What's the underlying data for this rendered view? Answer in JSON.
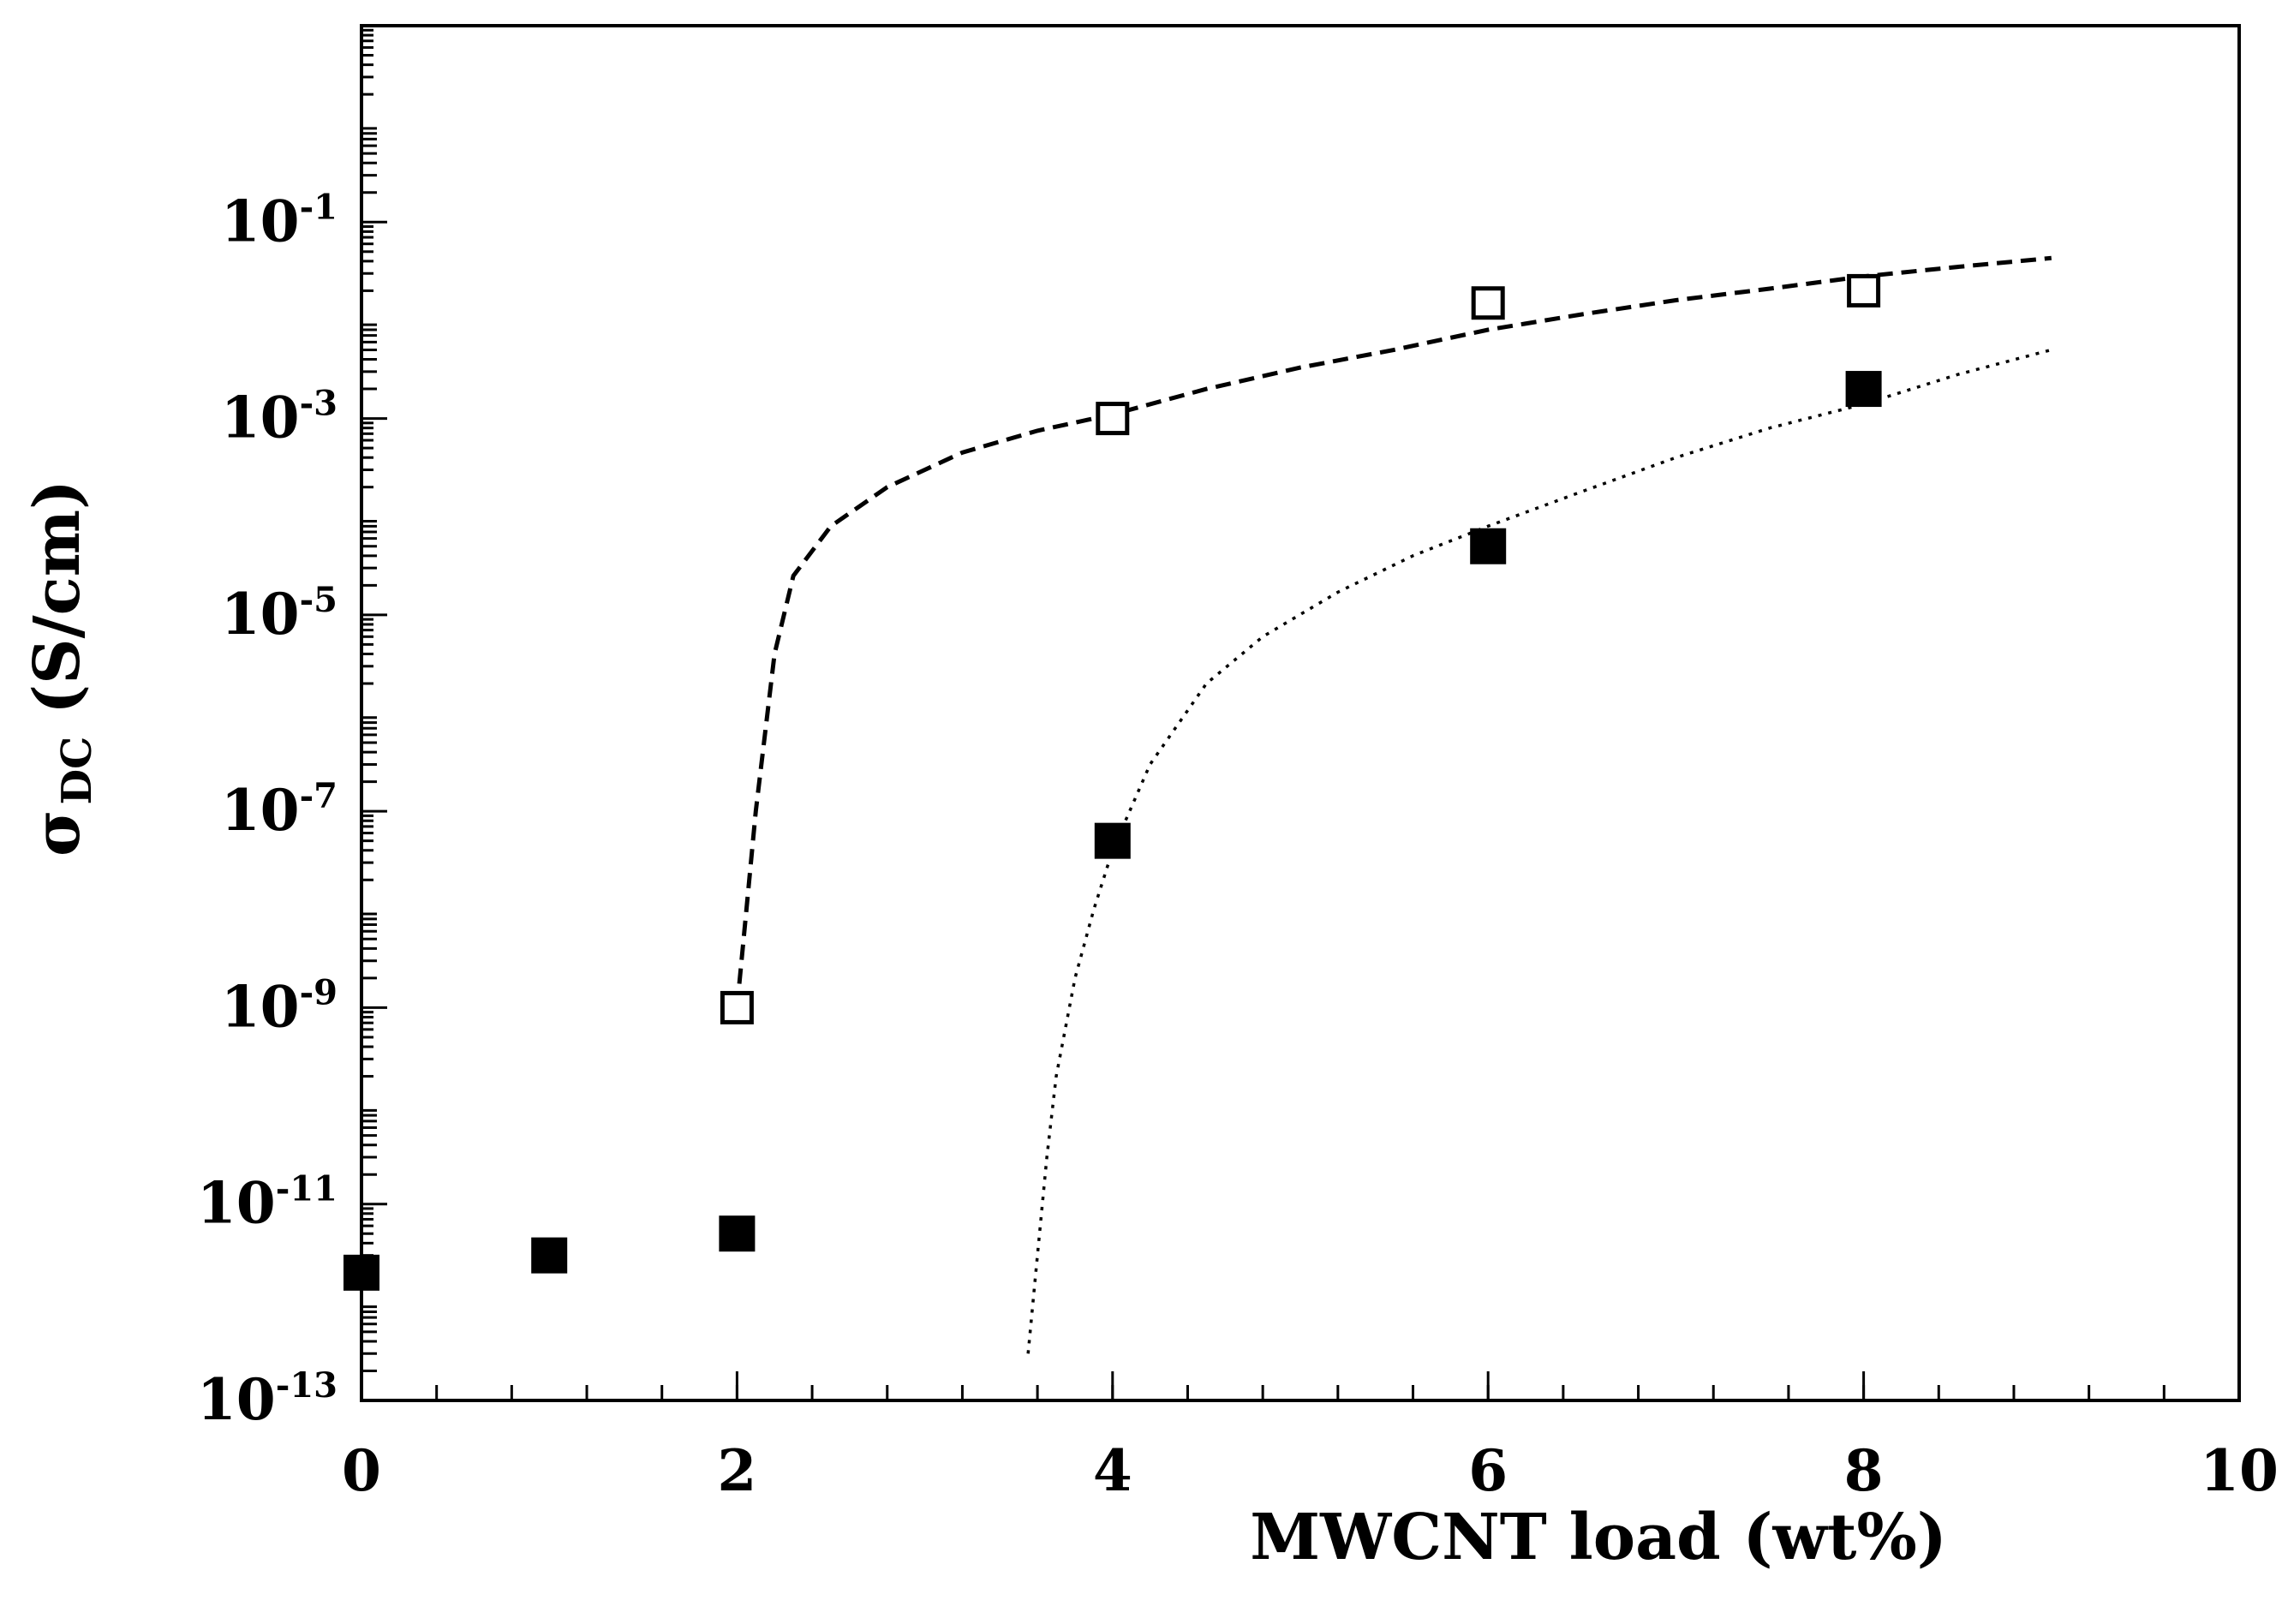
{
  "chart_data": {
    "type": "scatter",
    "title": "",
    "xlabel": "MWCNT load  (wt%)",
    "ylabel": {
      "symbol": "σ",
      "subscript": "DC",
      "units": " (S/cm)"
    },
    "xlim": [
      0,
      10
    ],
    "ylim": [
      1e-13,
      10.0
    ],
    "y_scale": "log",
    "x_ticks": [
      0,
      2,
      4,
      6,
      8,
      10
    ],
    "x_tick_labels": [
      "0",
      "2",
      "4",
      "6",
      "8",
      "10"
    ],
    "x_minor_step": 0.4,
    "y_ticks": [
      {
        "base": "10",
        "exp": "-1",
        "value": 0.1
      },
      {
        "base": "10",
        "exp": "-3",
        "value": 0.001
      },
      {
        "base": "10",
        "exp": "-5",
        "value": 1e-05
      },
      {
        "base": "10",
        "exp": "-7",
        "value": 1e-07
      },
      {
        "base": "10",
        "exp": "-9",
        "value": 1e-09
      },
      {
        "base": "10",
        "exp": "-11",
        "value": 1e-11
      },
      {
        "base": "10",
        "exp": "-13",
        "value": 1e-13
      }
    ],
    "grid": false,
    "series": [
      {
        "name": "open squares",
        "marker": "open-square",
        "x": [
          2,
          4,
          6,
          8
        ],
        "y": [
          1e-09,
          0.001,
          0.015,
          0.02
        ]
      },
      {
        "name": "filled squares",
        "marker": "filled-square",
        "x": [
          0,
          1,
          2,
          4,
          6,
          8
        ],
        "y": [
          2e-12,
          3e-12,
          5e-12,
          5e-08,
          5e-05,
          0.002
        ]
      }
    ],
    "fits": [
      {
        "name": "open-square fit",
        "style": "dashed",
        "x": [
          2.0,
          2.05,
          2.1,
          2.2,
          2.3,
          2.5,
          2.8,
          3.2,
          3.6,
          4.0,
          4.5,
          5.0,
          5.5,
          6.0,
          6.5,
          7.0,
          7.5,
          8.0,
          8.5,
          9.0
        ],
        "y": [
          1e-09,
          1e-08,
          1e-07,
          4e-06,
          2.5e-05,
          8e-05,
          0.0002,
          0.00045,
          0.00075,
          0.0011,
          0.002,
          0.0033,
          0.005,
          0.008,
          0.0115,
          0.016,
          0.021,
          0.028,
          0.035,
          0.043
        ]
      },
      {
        "name": "filled-square fit",
        "style": "dotted",
        "x": [
          3.55,
          3.6,
          3.65,
          3.7,
          3.8,
          3.9,
          4.0,
          4.2,
          4.5,
          4.8,
          5.2,
          5.6,
          6.0,
          6.5,
          7.0,
          7.5,
          8.0,
          8.5,
          9.0
        ],
        "y": [
          3e-13,
          3e-12,
          3e-11,
          2e-10,
          2e-09,
          1e-08,
          4e-08,
          3e-07,
          2e-06,
          6e-06,
          1.7e-05,
          4e-05,
          8e-05,
          0.00018,
          0.0004,
          0.0008,
          0.0014,
          0.0028,
          0.005
        ]
      }
    ]
  }
}
